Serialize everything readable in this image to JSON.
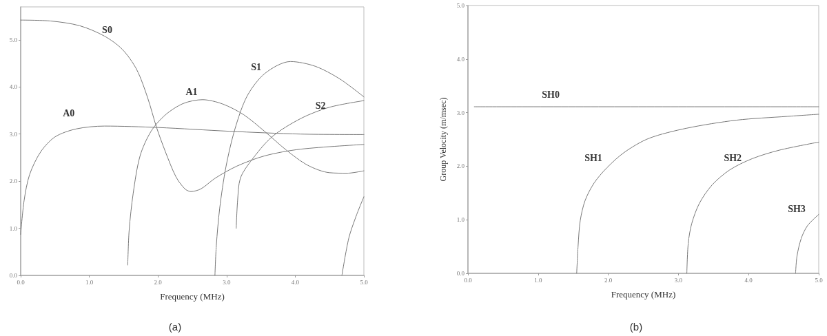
{
  "chart_data": [
    {
      "type": "line",
      "xlabel": "Frequency (MHz)",
      "annotations": [
        "(a)"
      ],
      "xlim": [
        0,
        5
      ],
      "xticks": [
        {
          "value": 0,
          "label": "0.0"
        },
        {
          "value": 1,
          "label": "1.0"
        },
        {
          "value": 2,
          "label": "2.0"
        },
        {
          "value": 3,
          "label": "3.0"
        },
        {
          "value": 4,
          "label": "4.0"
        },
        {
          "value": 5,
          "label": "5.0"
        }
      ],
      "ylim": [
        0,
        5.7
      ],
      "yticks": [
        {
          "value": 0,
          "label": "0.0"
        },
        {
          "value": 1,
          "label": "1.0"
        },
        {
          "value": 2,
          "label": "2.0"
        },
        {
          "value": 3,
          "label": "3.0"
        },
        {
          "value": 4,
          "label": "4.0"
        },
        {
          "value": 5,
          "label": "5.0"
        }
      ],
      "grid": false,
      "legend": false,
      "marker": "none",
      "line_style": "solid",
      "series": [
        {
          "name": "S0",
          "color": "#777777",
          "x": [
            0,
            0.44,
            0.86,
            1.22,
            1.48,
            1.69,
            1.85,
            1.98,
            2.11,
            2.26,
            2.39,
            2.48,
            2.63,
            2.83,
            3.15,
            3.56,
            4.08,
            5.0
          ],
          "values": [
            5.42,
            5.4,
            5.3,
            5.08,
            4.8,
            4.37,
            3.77,
            3.14,
            2.62,
            2.1,
            1.84,
            1.78,
            1.84,
            2.06,
            2.32,
            2.54,
            2.68,
            2.78
          ]
        },
        {
          "name": "A0",
          "color": "#777777",
          "x": [
            0,
            0.05,
            0.13,
            0.29,
            0.5,
            0.81,
            1.22,
            2.0,
            3.04,
            4.08,
            5.0
          ],
          "values": [
            0.87,
            1.59,
            2.14,
            2.62,
            2.94,
            3.11,
            3.17,
            3.14,
            3.06,
            3.0,
            2.99
          ]
        },
        {
          "name": "A1",
          "color": "#777777",
          "x": [
            1.56,
            1.58,
            1.64,
            1.74,
            1.9,
            2.11,
            2.37,
            2.65,
            2.94,
            3.25,
            3.56,
            3.87,
            4.18,
            4.5,
            4.76,
            5.0
          ],
          "values": [
            0.22,
            0.95,
            1.75,
            2.54,
            3.06,
            3.41,
            3.65,
            3.73,
            3.64,
            3.41,
            3.05,
            2.66,
            2.34,
            2.18,
            2.17,
            2.22
          ]
        },
        {
          "name": "S1",
          "color": "#777777",
          "x": [
            2.83,
            2.85,
            2.9,
            2.99,
            3.12,
            3.3,
            3.56,
            3.93,
            4.29,
            4.65,
            5.0
          ],
          "values": [
            0,
            0.63,
            1.43,
            2.3,
            3.1,
            3.81,
            4.29,
            4.54,
            4.44,
            4.17,
            3.79
          ]
        },
        {
          "name": "S2",
          "color": "#777777",
          "x": [
            3.14,
            3.16,
            3.2,
            3.35,
            3.66,
            4.08,
            4.5,
            5.0
          ],
          "values": [
            1.0,
            1.58,
            2.06,
            2.42,
            2.94,
            3.33,
            3.57,
            3.71
          ]
        },
        {
          "color": "#777777",
          "x": [
            4.68,
            4.78,
            4.89,
            5.0
          ],
          "values": [
            0,
            0.79,
            1.27,
            1.67
          ]
        }
      ]
    },
    {
      "type": "line",
      "xlabel": "Frequency (MHz)",
      "ylabel": "Group Velocity (m/msec)",
      "annotations": [
        "(b)"
      ],
      "xlim": [
        0,
        5
      ],
      "xticks": [
        {
          "value": 0,
          "label": "0.0"
        },
        {
          "value": 1,
          "label": "1.0"
        },
        {
          "value": 2,
          "label": "2.0"
        },
        {
          "value": 3,
          "label": "3.0"
        },
        {
          "value": 4,
          "label": "4.0"
        },
        {
          "value": 5,
          "label": "5.0"
        }
      ],
      "ylim": [
        0,
        5
      ],
      "yticks": [
        {
          "value": 0,
          "label": "0.0"
        },
        {
          "value": 1,
          "label": "1.0"
        },
        {
          "value": 2,
          "label": "2.0"
        },
        {
          "value": 3,
          "label": "3.0"
        },
        {
          "value": 4,
          "label": "4.0"
        },
        {
          "value": 5,
          "label": "5.0"
        }
      ],
      "grid": false,
      "legend": false,
      "marker": "none",
      "line_style": "solid",
      "series": [
        {
          "name": "SH0",
          "color": "#777777",
          "x": [
            0.09,
            5.0
          ],
          "values": [
            3.11,
            3.11
          ]
        },
        {
          "name": "SH1",
          "color": "#777777",
          "x": [
            1.55,
            1.57,
            1.6,
            1.67,
            1.8,
            1.98,
            2.23,
            2.58,
            3.12,
            3.83,
            4.55,
            5.0
          ],
          "values": [
            0,
            0.51,
            0.98,
            1.36,
            1.69,
            1.97,
            2.26,
            2.52,
            2.71,
            2.86,
            2.93,
            2.97
          ]
        },
        {
          "name": "SH2",
          "color": "#777777",
          "x": [
            3.12,
            3.14,
            3.19,
            3.3,
            3.48,
            3.73,
            4.05,
            4.44,
            5.0
          ],
          "values": [
            0,
            0.56,
            0.93,
            1.31,
            1.65,
            1.93,
            2.14,
            2.3,
            2.45
          ]
        },
        {
          "name": "SH3",
          "color": "#777777",
          "x": [
            4.67,
            4.69,
            4.75,
            4.84,
            5.0
          ],
          "values": [
            0,
            0.32,
            0.65,
            0.89,
            1.1
          ]
        }
      ]
    }
  ]
}
